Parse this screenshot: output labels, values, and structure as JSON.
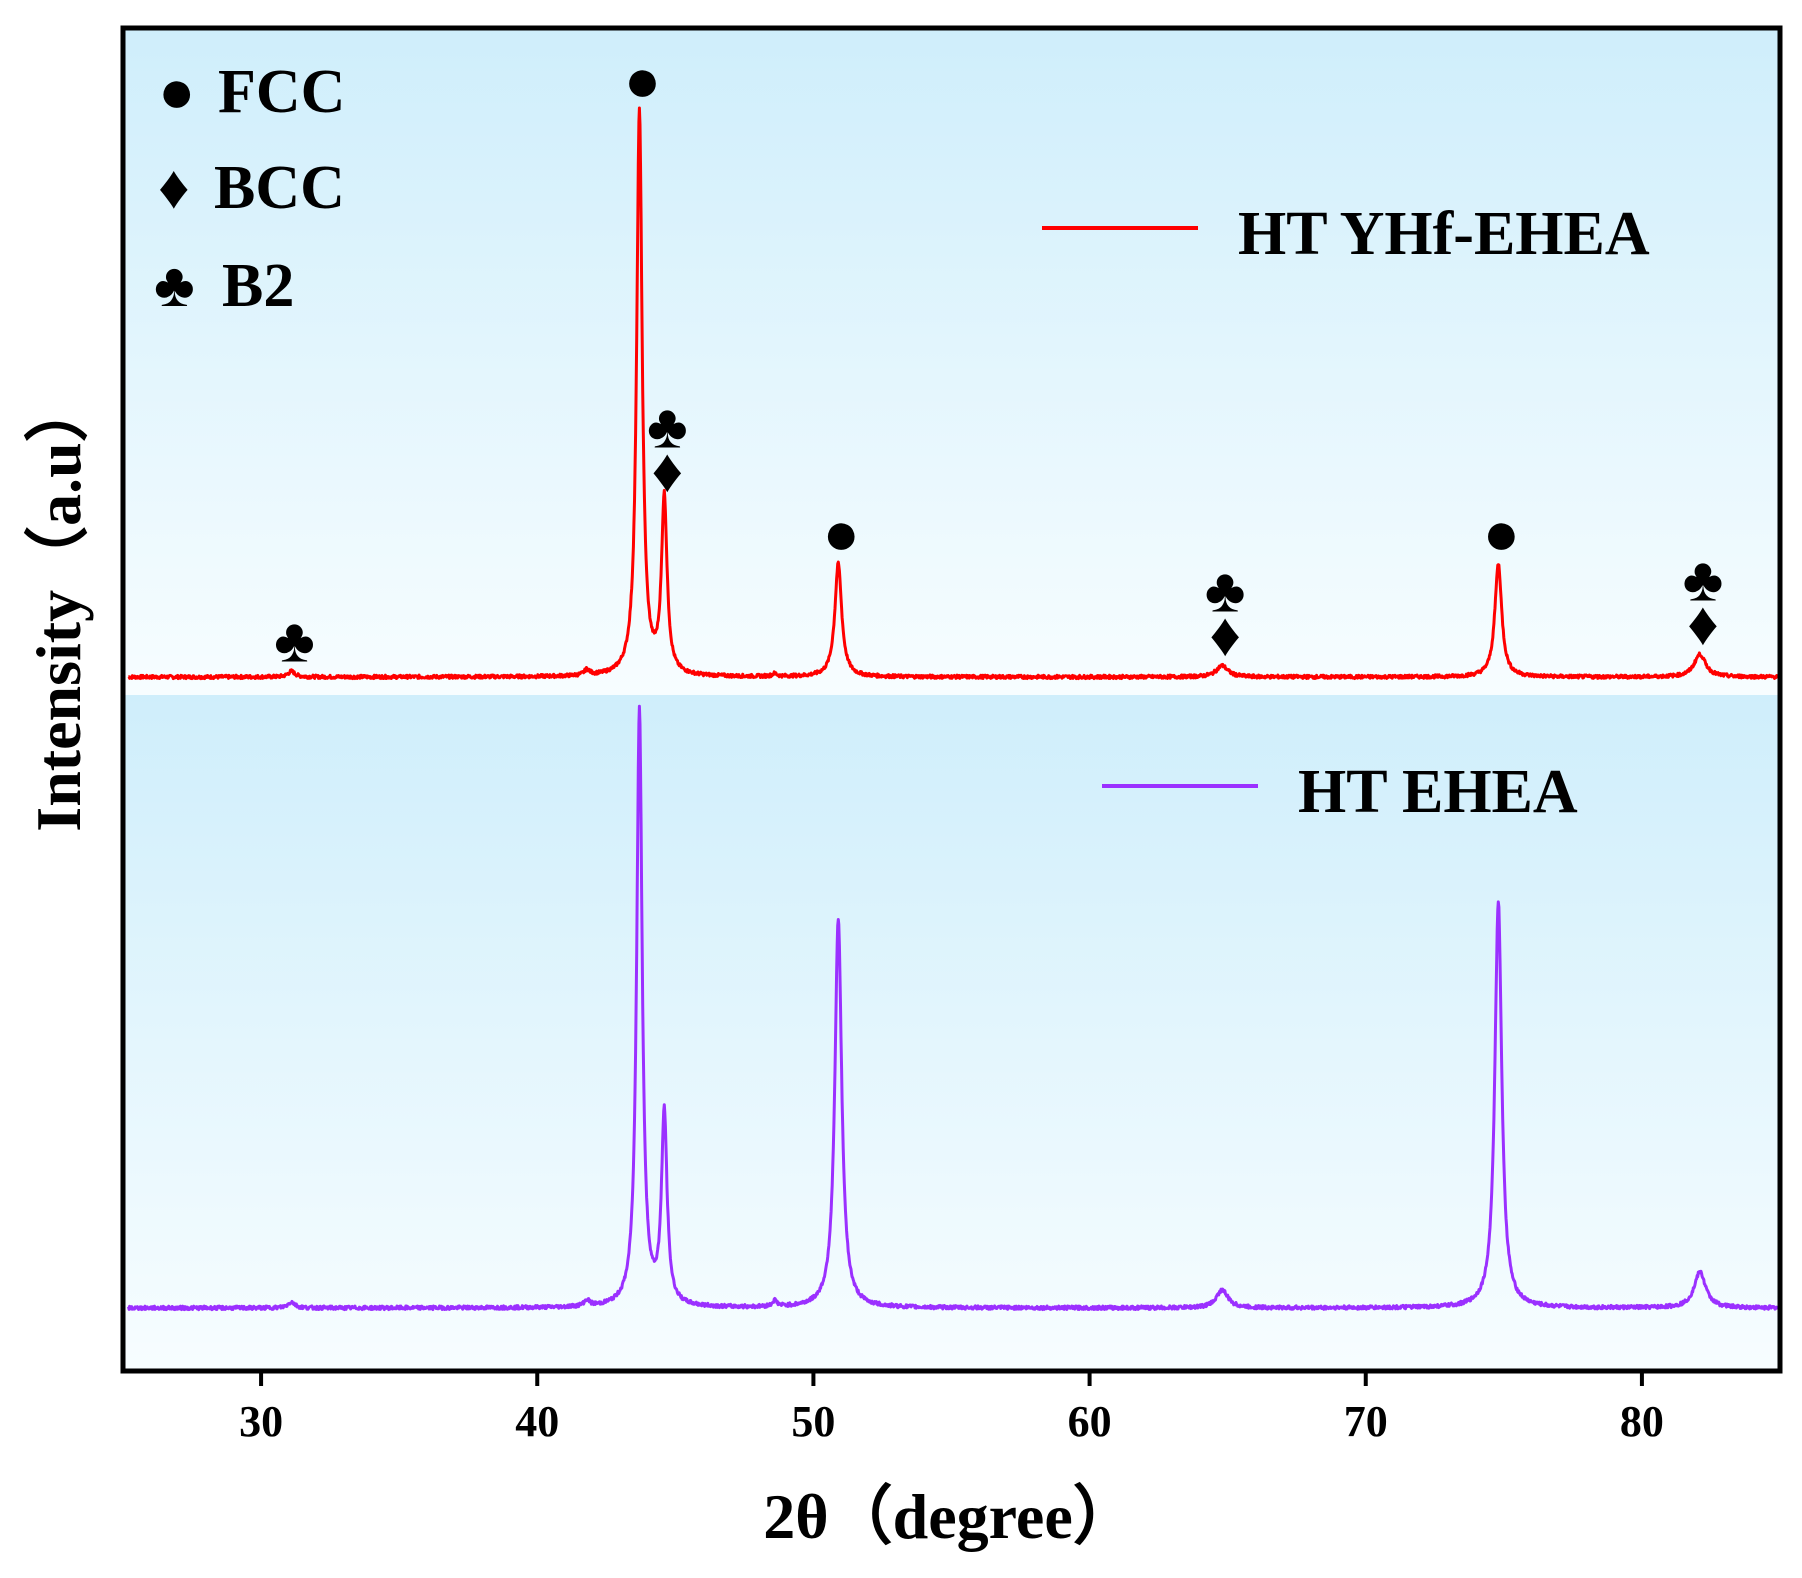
{
  "chart_data": {
    "type": "line",
    "xlabel": "2θ（degree）",
    "ylabel": "Intensity（a.u）",
    "xlim": [
      25,
      85
    ],
    "xticks": [
      30,
      40,
      50,
      60,
      70,
      80
    ],
    "yticks": [],
    "background": {
      "top": "#cfeefb",
      "bottom": "#f7fdff"
    },
    "phase_legend": [
      {
        "marker": "●",
        "label": "FCC"
      },
      {
        "marker": "♦",
        "label": "BCC"
      },
      {
        "marker": "♣",
        "label": "B2"
      }
    ],
    "series": [
      {
        "name": "HT YHf-EHEA",
        "color": "#ff0000",
        "baseline": 0,
        "peaks": [
          {
            "x": 31.1,
            "h": 0.01,
            "w": 0.15
          },
          {
            "x": 41.8,
            "h": 0.01,
            "w": 0.12
          },
          {
            "x": 43.7,
            "h": 1.0,
            "w": 0.12
          },
          {
            "x": 44.6,
            "h": 0.31,
            "w": 0.12
          },
          {
            "x": 48.6,
            "h": 0.005,
            "w": 0.1
          },
          {
            "x": 50.9,
            "h": 0.2,
            "w": 0.15
          },
          {
            "x": 64.8,
            "h": 0.02,
            "w": 0.25
          },
          {
            "x": 74.8,
            "h": 0.2,
            "w": 0.15
          },
          {
            "x": 82.1,
            "h": 0.04,
            "w": 0.25
          }
        ],
        "annotations": [
          {
            "x": 31.1,
            "y": 0.01,
            "markers": [
              "♣"
            ]
          },
          {
            "x": 43.7,
            "y": 1.0,
            "markers": [
              "●"
            ]
          },
          {
            "x": 44.6,
            "y": 0.31,
            "markers": [
              "♣",
              "♦"
            ]
          },
          {
            "x": 50.9,
            "y": 0.2,
            "markers": [
              "●"
            ]
          },
          {
            "x": 64.8,
            "y": 0.02,
            "markers": [
              "♣",
              "♦"
            ]
          },
          {
            "x": 74.8,
            "y": 0.2,
            "markers": [
              "●"
            ]
          },
          {
            "x": 82.1,
            "y": 0.04,
            "markers": [
              "♣",
              "♦"
            ]
          }
        ]
      },
      {
        "name": "HT EHEA",
        "color": "#9b30ff",
        "baseline": 0,
        "peaks": [
          {
            "x": 31.1,
            "h": 0.01,
            "w": 0.15
          },
          {
            "x": 41.8,
            "h": 0.01,
            "w": 0.12
          },
          {
            "x": 43.7,
            "h": 1.0,
            "w": 0.12
          },
          {
            "x": 44.6,
            "h": 0.32,
            "w": 0.12
          },
          {
            "x": 48.6,
            "h": 0.01,
            "w": 0.1
          },
          {
            "x": 50.9,
            "h": 0.65,
            "w": 0.15
          },
          {
            "x": 64.8,
            "h": 0.03,
            "w": 0.25
          },
          {
            "x": 74.8,
            "h": 0.68,
            "w": 0.15
          },
          {
            "x": 82.1,
            "h": 0.06,
            "w": 0.25
          }
        ],
        "annotations": []
      }
    ]
  }
}
